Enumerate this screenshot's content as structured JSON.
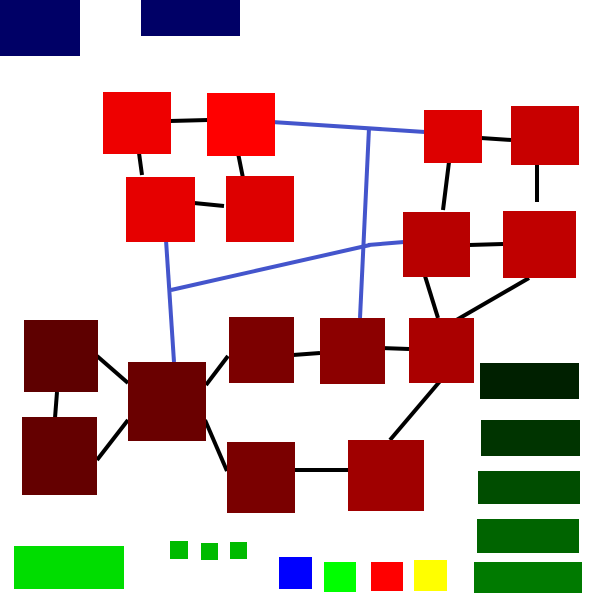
{
  "colors": {
    "header_block": "#000066",
    "red_bright": "#ee0000",
    "red": "#dd0000",
    "red_dark": "#c80000",
    "red_deeper": "#b80000",
    "maroon": "#7c0000",
    "maroon_dark": "#6a0000",
    "maroon_deep": "#5e0000",
    "crimson": "#940000",
    "crimson_light": "#a00000",
    "link_black": "#000000",
    "link_blue": "#4455cc",
    "green_bright": "#00dd00",
    "green_mid": "#00bb00",
    "blue": "#0000ff",
    "yellow": "#ffff00",
    "green_1": "#002400",
    "green_2": "#003800",
    "green_3": "#004d00",
    "green_4": "#006400",
    "green_5": "#007a00"
  },
  "header": {
    "blocks": [
      "header-block-1",
      "header-block-2"
    ]
  },
  "graph": {
    "nodes": [
      "node-1",
      "node-2",
      "node-3",
      "node-4",
      "node-5",
      "node-6",
      "node-7",
      "node-8",
      "node-9",
      "node-10",
      "node-11",
      "node-12",
      "node-13",
      "node-14",
      "node-15",
      "node-16",
      "node-17"
    ]
  },
  "footer": {
    "swatches": [
      "blue",
      "green",
      "red",
      "yellow"
    ],
    "legend_bars": 5,
    "small_squares": 3
  }
}
